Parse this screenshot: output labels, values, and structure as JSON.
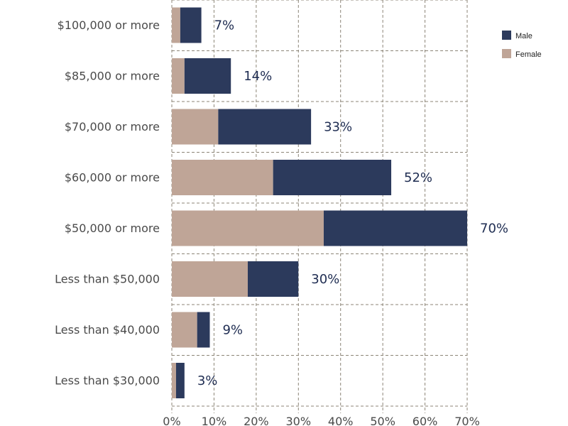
{
  "chart_data": {
    "type": "bar",
    "orientation": "horizontal",
    "stacked": true,
    "categories": [
      "$100,000 or more",
      "$85,000 or more",
      "$70,000 or more",
      "$60,000 or more",
      "$50,000 or more",
      "Less than $50,000",
      "Less than $40,000",
      "Less than $30,000"
    ],
    "series": [
      {
        "name": "Female",
        "color": "#bfa597",
        "values": [
          2,
          3,
          11,
          24,
          36,
          18,
          6,
          1
        ]
      },
      {
        "name": "Male",
        "color": "#2c3a5c",
        "values": [
          5,
          11,
          22,
          28,
          34,
          12,
          3,
          2
        ]
      }
    ],
    "totals": [
      7,
      14,
      33,
      52,
      70,
      30,
      9,
      3
    ],
    "total_labels": [
      "7%",
      "14%",
      "33%",
      "52%",
      "70%",
      "30%",
      "9%",
      "3%"
    ],
    "xlim": [
      0,
      70
    ],
    "xticks": [
      0,
      10,
      20,
      30,
      40,
      50,
      60,
      70
    ],
    "xtick_labels": [
      "0%",
      "10%",
      "20%",
      "30%",
      "40%",
      "50%",
      "60%",
      "70%"
    ],
    "grid": true,
    "legend": {
      "placement": "top-right",
      "order": [
        "Male",
        "Female"
      ]
    },
    "title": "",
    "xlabel": "",
    "ylabel": ""
  }
}
